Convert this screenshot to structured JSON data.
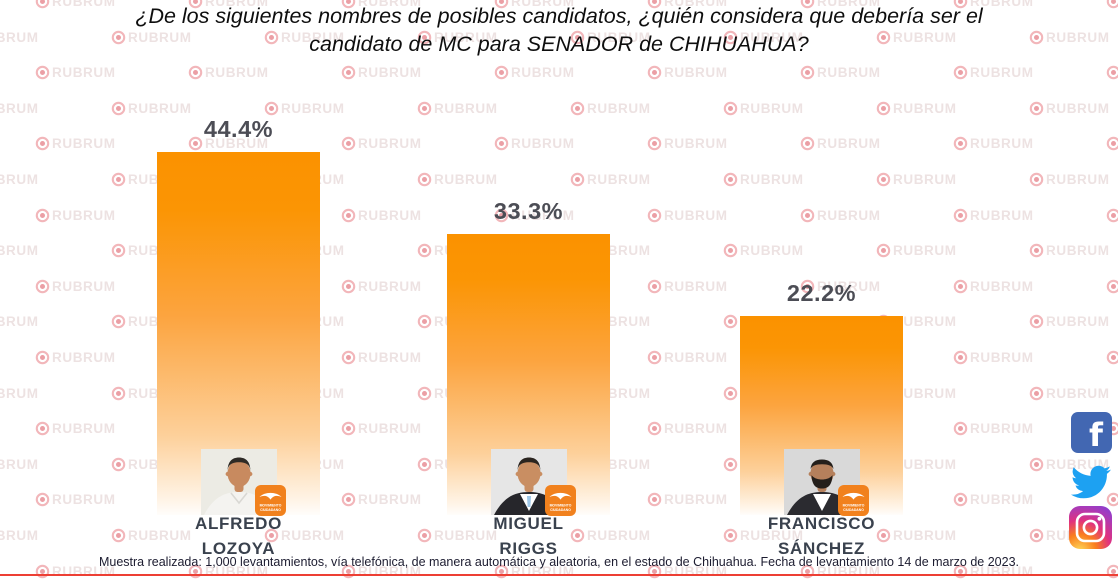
{
  "title": {
    "line1": "¿De los siguientes nombres de posibles candidatos, ¿quién considera que debería ser el",
    "line2": "candidato de MC para SENADOR de CHIHUAHUA?"
  },
  "chart_data": {
    "type": "bar",
    "title": "¿De los siguientes nombres de posibles candidatos, ¿quién considera que debería ser el candidato de MC para SENADOR de CHIHUAHUA?",
    "categories": [
      "ALFREDO LOZOYA",
      "MIGUEL RIGGS",
      "FRANCISCO SÁNCHEZ"
    ],
    "values": [
      44.4,
      33.3,
      22.2
    ],
    "value_labels": [
      "44.4%",
      "33.3%",
      "22.2%"
    ],
    "unit": "%",
    "bar_color": "#FB9200",
    "bar_style": "orange fading to white at bottom",
    "legend": "none",
    "grid": "off",
    "axes": "hidden"
  },
  "candidates": [
    {
      "name_line1": "ALFREDO",
      "name_line2": "LOZOYA",
      "pct_label": "44.4%",
      "photo": "man-white-shirt-portrait"
    },
    {
      "name_line1": "MIGUEL",
      "name_line2": "RIGGS",
      "pct_label": "33.3%",
      "photo": "man-dark-suit-blue-tie-portrait"
    },
    {
      "name_line1": "FRANCISCO",
      "name_line2": "SÁNCHEZ",
      "pct_label": "22.2%",
      "photo": "man-dark-suit-beard-portrait"
    }
  ],
  "party_badge": {
    "line1": "MOVIMIENTO",
    "line2": "CIUDADANO",
    "color": "#F1811D"
  },
  "watermark": {
    "text": "RUBRUM",
    "icon": "bullseye-target",
    "ring_color": "#F2B6BA",
    "dot_color": "#EB9FA5",
    "text_color": "#EDE2E2"
  },
  "social": {
    "facebook_color": "#4267B2",
    "twitter_color": "#1DA1F2",
    "instagram_style": "purple-pink-orange gradient"
  },
  "footer": {
    "text": "Muestra realizada: 1,000 levantamientos, vía telefónica, de manera automática y aleatoria, en el estado de Chihuahua. Fecha de levantamiento 14 de marzo de 2023."
  },
  "accents": {
    "bottom_line_color": "#ED3F34"
  }
}
